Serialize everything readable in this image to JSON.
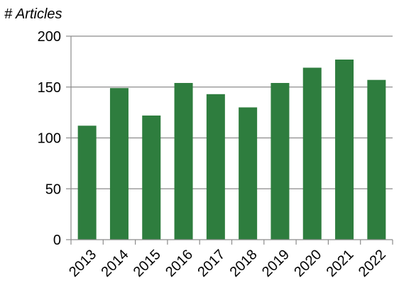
{
  "chart_data": {
    "type": "bar",
    "title": "",
    "xlabel": "",
    "ylabel": "# Articles",
    "categories": [
      "2013",
      "2014",
      "2015",
      "2016",
      "2017",
      "2018",
      "2019",
      "2020",
      "2021",
      "2022"
    ],
    "values": [
      112,
      149,
      122,
      154,
      143,
      130,
      154,
      169,
      177,
      157
    ],
    "ylim": [
      0,
      200
    ],
    "yticks": [
      "0",
      "50",
      "100",
      "150",
      "200"
    ],
    "grid": true,
    "legend": "none",
    "colors": {
      "bar": "#2e7d3e",
      "grid": "#8c8c8c",
      "axis": "#8c8c8c"
    }
  }
}
